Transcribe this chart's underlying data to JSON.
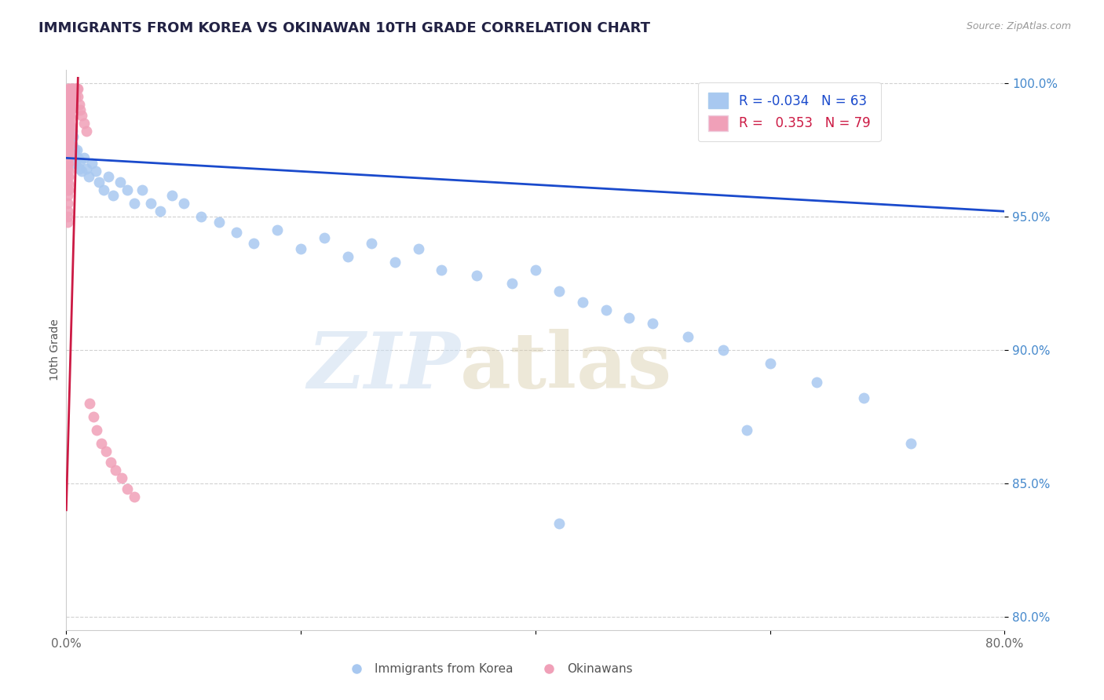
{
  "title": "IMMIGRANTS FROM KOREA VS OKINAWAN 10TH GRADE CORRELATION CHART",
  "source": "Source: ZipAtlas.com",
  "ylabel": "10th Grade",
  "xlim": [
    0.0,
    0.8
  ],
  "ylim": [
    0.795,
    1.005
  ],
  "xticks": [
    0.0,
    0.2,
    0.4,
    0.6,
    0.8
  ],
  "xticklabels": [
    "0.0%",
    "",
    "",
    "",
    "80.0%"
  ],
  "yticks": [
    0.8,
    0.85,
    0.9,
    0.95,
    1.0
  ],
  "yticklabels": [
    "80.0%",
    "85.0%",
    "90.0%",
    "95.0%",
    "100.0%"
  ],
  "blue_R": -0.034,
  "blue_N": 63,
  "pink_R": 0.353,
  "pink_N": 79,
  "blue_color": "#a8c8f0",
  "pink_color": "#f0a0b8",
  "trend_blue": "#1a4acc",
  "trend_pink": "#cc1a44",
  "background": "#ffffff",
  "grid_color": "#cccccc",
  "blue_x": [
    0.001,
    0.002,
    0.002,
    0.003,
    0.003,
    0.004,
    0.004,
    0.005,
    0.005,
    0.006,
    0.006,
    0.007,
    0.008,
    0.009,
    0.01,
    0.011,
    0.012,
    0.013,
    0.015,
    0.017,
    0.019,
    0.022,
    0.025,
    0.028,
    0.032,
    0.036,
    0.04,
    0.046,
    0.052,
    0.058,
    0.065,
    0.072,
    0.08,
    0.09,
    0.1,
    0.115,
    0.13,
    0.145,
    0.16,
    0.18,
    0.2,
    0.22,
    0.24,
    0.26,
    0.28,
    0.3,
    0.32,
    0.35,
    0.38,
    0.4,
    0.42,
    0.44,
    0.46,
    0.48,
    0.5,
    0.53,
    0.56,
    0.6,
    0.64,
    0.68,
    0.58,
    0.72,
    0.42
  ],
  "blue_y": [
    0.99,
    0.988,
    0.985,
    0.984,
    0.98,
    0.978,
    0.975,
    0.982,
    0.977,
    0.974,
    0.98,
    0.975,
    0.97,
    0.975,
    0.972,
    0.968,
    0.971,
    0.967,
    0.972,
    0.968,
    0.965,
    0.97,
    0.967,
    0.963,
    0.96,
    0.965,
    0.958,
    0.963,
    0.96,
    0.955,
    0.96,
    0.955,
    0.952,
    0.958,
    0.955,
    0.95,
    0.948,
    0.944,
    0.94,
    0.945,
    0.938,
    0.942,
    0.935,
    0.94,
    0.933,
    0.938,
    0.93,
    0.928,
    0.925,
    0.93,
    0.922,
    0.918,
    0.915,
    0.912,
    0.91,
    0.905,
    0.9,
    0.895,
    0.888,
    0.882,
    0.87,
    0.865,
    0.835
  ],
  "pink_x": [
    0.001,
    0.001,
    0.001,
    0.001,
    0.001,
    0.001,
    0.001,
    0.001,
    0.001,
    0.001,
    0.001,
    0.001,
    0.001,
    0.001,
    0.001,
    0.001,
    0.001,
    0.001,
    0.001,
    0.001,
    0.002,
    0.002,
    0.002,
    0.002,
    0.002,
    0.002,
    0.002,
    0.002,
    0.002,
    0.002,
    0.002,
    0.002,
    0.002,
    0.002,
    0.002,
    0.002,
    0.003,
    0.003,
    0.003,
    0.003,
    0.003,
    0.003,
    0.003,
    0.003,
    0.003,
    0.003,
    0.004,
    0.004,
    0.004,
    0.004,
    0.004,
    0.004,
    0.005,
    0.005,
    0.005,
    0.006,
    0.006,
    0.007,
    0.007,
    0.008,
    0.008,
    0.009,
    0.01,
    0.01,
    0.011,
    0.012,
    0.013,
    0.015,
    0.017,
    0.02,
    0.023,
    0.026,
    0.03,
    0.034,
    0.038,
    0.042,
    0.047,
    0.052,
    0.058
  ],
  "pink_y": [
    0.995,
    0.993,
    0.99,
    0.988,
    0.985,
    0.983,
    0.98,
    0.978,
    0.975,
    0.972,
    0.97,
    0.968,
    0.965,
    0.963,
    0.96,
    0.958,
    0.955,
    0.952,
    0.95,
    0.948,
    0.998,
    0.996,
    0.993,
    0.99,
    0.988,
    0.985,
    0.982,
    0.98,
    0.978,
    0.975,
    0.972,
    0.97,
    0.967,
    0.965,
    0.962,
    0.96,
    0.998,
    0.996,
    0.993,
    0.99,
    0.988,
    0.985,
    0.982,
    0.98,
    0.977,
    0.974,
    0.998,
    0.995,
    0.992,
    0.99,
    0.987,
    0.984,
    0.998,
    0.995,
    0.992,
    0.998,
    0.995,
    0.998,
    0.995,
    0.998,
    0.995,
    0.998,
    0.998,
    0.995,
    0.992,
    0.99,
    0.988,
    0.985,
    0.982,
    0.88,
    0.875,
    0.87,
    0.865,
    0.862,
    0.858,
    0.855,
    0.852,
    0.848,
    0.845
  ]
}
